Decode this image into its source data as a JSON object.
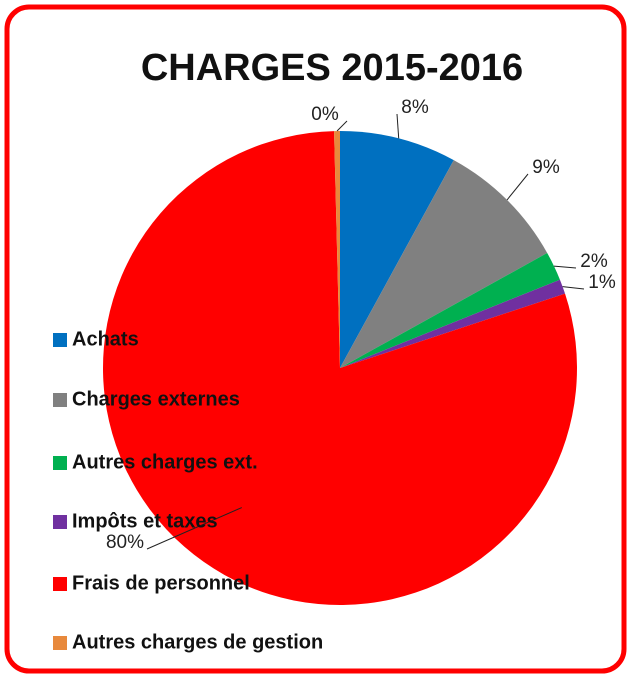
{
  "chart_data": {
    "type": "pie",
    "title": "CHARGES 2015-2016",
    "categories": [
      "Achats",
      "Charges externes",
      "Autres charges ext.",
      "Impôts et taxes",
      "Frais de personnel",
      "Autres charges de gestion"
    ],
    "values": [
      8,
      9,
      2,
      1,
      80,
      0.4
    ],
    "value_labels": [
      "8%",
      "9%",
      "2%",
      "1%",
      "80%",
      "0%"
    ],
    "colors": [
      "#0070c0",
      "#808080",
      "#00b050",
      "#7030a0",
      "#ff0000",
      "#e8893c"
    ],
    "legend": "left"
  }
}
